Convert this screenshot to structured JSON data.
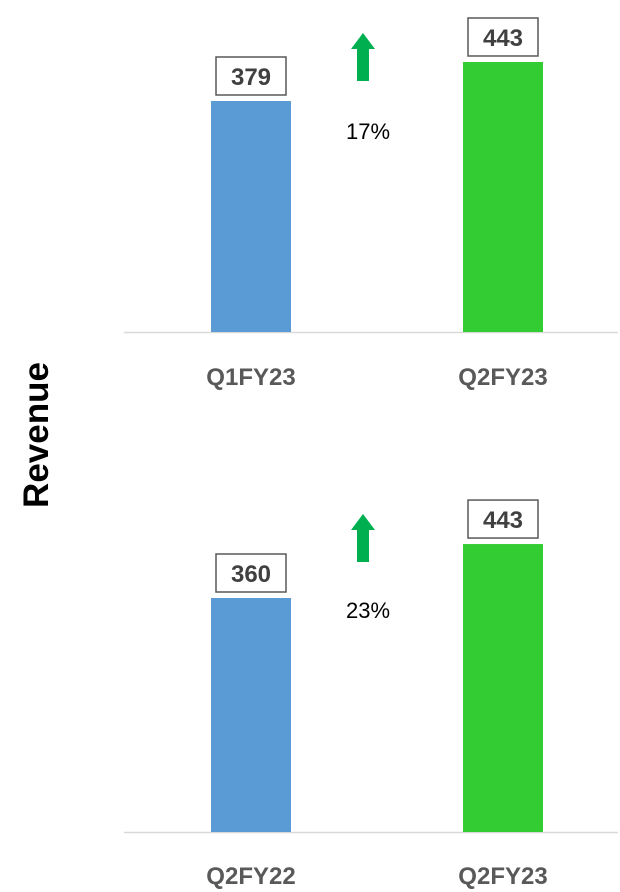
{
  "colors": {
    "previous": "#5B9BD5",
    "current": "#33CC33",
    "arrow": "#00B050",
    "axis": "#D9D9D9",
    "label_border": "#595959",
    "label_text": "#404040",
    "tick_text": "#595959"
  },
  "chart_data": [
    {
      "type": "bar",
      "ylabel": "Revenue",
      "categories": [
        "Q1FY23",
        "Q2FY23"
      ],
      "values": [
        379,
        443
      ],
      "data_labels": [
        "379",
        "443"
      ],
      "change": {
        "label": "17%",
        "direction": "up",
        "icon": "up-arrow-icon"
      },
      "ylim": [
        0,
        500
      ],
      "grid": false,
      "legend": "none"
    },
    {
      "type": "bar",
      "ylabel": "Revenue",
      "categories": [
        "Q2FY22",
        "Q2FY23"
      ],
      "values": [
        360,
        443
      ],
      "data_labels": [
        "360",
        "443"
      ],
      "change": {
        "label": "23%",
        "direction": "up",
        "icon": "up-arrow-icon"
      },
      "ylim": [
        0,
        500
      ],
      "grid": false,
      "legend": "none"
    }
  ]
}
